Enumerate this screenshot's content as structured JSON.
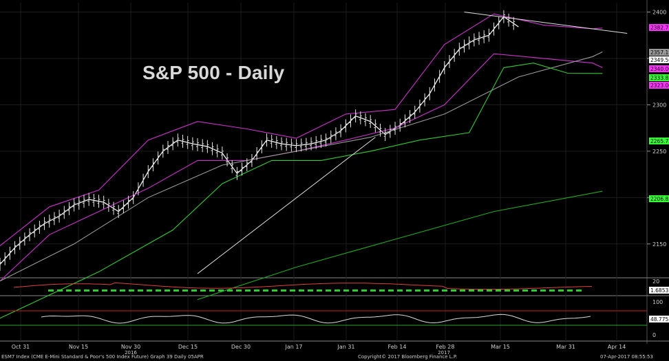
{
  "chart_data": {
    "type": "line",
    "title": "S&P 500 - Daily",
    "xaxis": {
      "ticks": [
        "Oct 31",
        "Nov 15",
        "Nov 30",
        "Dec 15",
        "Dec 30",
        "Jan 17",
        "Jan 31",
        "Feb 14",
        "Feb 28",
        "Mar 15",
        "Mar 31",
        "Apr 14"
      ],
      "year_labels": [
        "2016",
        "2017"
      ]
    },
    "price_panel": {
      "ylim": [
        2115,
        2410
      ],
      "yticks": [
        2150,
        2200,
        2250,
        2300,
        2350,
        2400
      ],
      "last_price_labels": [
        {
          "value": "2382.71",
          "color": "#ff33ff"
        },
        {
          "value": "2357.11",
          "color": "#9a9a9a"
        },
        {
          "value": "2349.50",
          "color": "#ffffff"
        },
        {
          "value": "2340.00",
          "color": "#ff33ff"
        },
        {
          "value": "2333.83",
          "color": "#33ff33"
        },
        {
          "value": "2323.00",
          "color": "#ff33ff"
        },
        {
          "value": "2265.75",
          "color": "#33ff33"
        },
        {
          "value": "2206.83",
          "color": "#33ff33"
        }
      ],
      "series": [
        {
          "name": "S&P 500 E-Mini",
          "color": "#ffffff",
          "x": [
            0,
            3,
            6,
            9,
            12,
            15,
            18,
            21,
            24,
            27,
            30,
            33,
            36,
            39,
            42,
            45,
            48,
            51,
            54,
            57,
            60,
            63,
            66,
            69,
            72,
            75,
            78,
            81,
            84,
            87,
            90,
            93,
            96,
            99,
            102,
            105
          ],
          "values": [
            2128,
            2146,
            2160,
            2172,
            2180,
            2192,
            2198,
            2195,
            2185,
            2200,
            2228,
            2250,
            2262,
            2258,
            2255,
            2248,
            2226,
            2240,
            2262,
            2258,
            2256,
            2258,
            2262,
            2272,
            2288,
            2282,
            2268,
            2278,
            2292,
            2312,
            2340,
            2360,
            2370,
            2375,
            2395,
            2384
          ]
        },
        {
          "name": "",
          "color": "#cc33cc",
          "x": [
            0,
            10,
            20,
            30,
            40,
            50,
            60,
            70,
            80,
            90,
            100,
            110,
            120,
            122
          ],
          "values": [
            2148,
            2190,
            2208,
            2262,
            2282,
            2274,
            2264,
            2290,
            2295,
            2365,
            2398,
            2386,
            2382,
            2382.71
          ]
        },
        {
          "name": "",
          "color": "#cc33cc",
          "x": [
            0,
            10,
            20,
            30,
            40,
            50,
            60,
            70,
            80,
            90,
            100,
            110,
            120,
            122
          ],
          "values": [
            2110,
            2160,
            2185,
            2210,
            2240,
            2240,
            2250,
            2262,
            2275,
            2300,
            2355,
            2350,
            2345,
            2340
          ]
        },
        {
          "name": "",
          "color": "#9a9a9a",
          "x": [
            0,
            15,
            30,
            45,
            60,
            75,
            90,
            105,
            120,
            122
          ],
          "values": [
            2110,
            2150,
            2200,
            2235,
            2250,
            2265,
            2290,
            2330,
            2352,
            2357.11
          ]
        },
        {
          "name": "",
          "color": "#33cc33",
          "x": [
            0,
            20,
            35,
            45,
            55,
            65,
            75,
            85,
            95,
            102,
            108,
            115,
            122
          ],
          "values": [
            2070,
            2120,
            2165,
            2215,
            2240,
            2240,
            2250,
            2262,
            2270,
            2340,
            2345,
            2334,
            2333.83
          ]
        },
        {
          "name": "",
          "color": "#22aa22",
          "x": [
            40,
            60,
            80,
            100,
            122
          ],
          "values": [
            2090,
            2125,
            2155,
            2185,
            2206.83
          ]
        }
      ],
      "trendlines": [
        {
          "x": [
            40,
            76
          ],
          "values": [
            2118,
            2265
          ],
          "color": "#e0e0e0"
        },
        {
          "x": [
            94,
            127
          ],
          "values": [
            2400,
            2377
          ],
          "color": "#e0e0e0"
        }
      ]
    },
    "macd_panel": {
      "last_value": "1.6853",
      "tick": "20"
    },
    "rsi_panel": {
      "yticks": [
        0,
        50,
        100
      ],
      "last_value": "48.7758"
    }
  },
  "footer": {
    "left": "ESM7 Index (CME E-Mini Standard & Poor's 500 Index Future) Graph 39  Daily 05APR",
    "center": "Copyright© 2017 Bloomberg Finance L.P.",
    "right": "07-Apr-2017 08:55:53"
  }
}
